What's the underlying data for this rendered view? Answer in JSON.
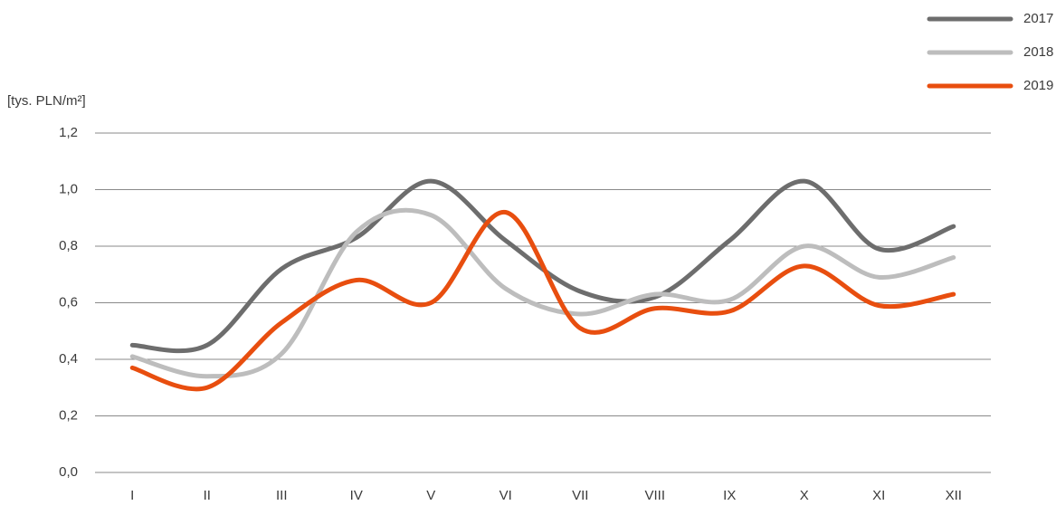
{
  "chart_data": {
    "type": "line",
    "y_label": "[tys. PLN/m²]",
    "categories": [
      "I",
      "II",
      "III",
      "IV",
      "V",
      "VI",
      "VII",
      "VIII",
      "IX",
      "X",
      "XI",
      "XII"
    ],
    "series": [
      {
        "name": "2017",
        "color": "#6d6d6d",
        "values": [
          0.45,
          0.45,
          0.72,
          0.83,
          1.03,
          0.82,
          0.64,
          0.62,
          0.82,
          1.03,
          0.79,
          0.87
        ]
      },
      {
        "name": "2018",
        "color": "#bdbdbd",
        "values": [
          0.41,
          0.34,
          0.42,
          0.85,
          0.91,
          0.65,
          0.56,
          0.63,
          0.61,
          0.8,
          0.69,
          0.76
        ]
      },
      {
        "name": "2019",
        "color": "#e84e0f",
        "values": [
          0.37,
          0.3,
          0.53,
          0.68,
          0.6,
          0.92,
          0.51,
          0.58,
          0.57,
          0.73,
          0.59,
          0.63
        ]
      }
    ],
    "ylim": [
      0,
      1.2
    ],
    "yticks": [
      {
        "value": 0,
        "label": "0,0"
      },
      {
        "value": 0.2,
        "label": "0,2"
      },
      {
        "value": 0.4,
        "label": "0,4"
      },
      {
        "value": 0.6,
        "label": "0,6"
      },
      {
        "value": 0.8,
        "label": "0,8"
      },
      {
        "value": 1.0,
        "label": "1,0"
      },
      {
        "value": 1.2,
        "label": "1,2"
      }
    ],
    "grid": true,
    "legend": "top-right"
  }
}
